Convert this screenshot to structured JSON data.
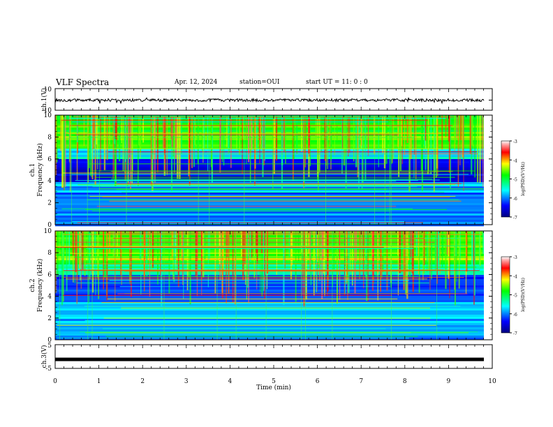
{
  "header": {
    "title": "VLF Spectra",
    "date": "Apr. 12, 2024",
    "station": "station=OUI",
    "start_ut": "start  UT  =   11: 0   : 0"
  },
  "chart_data": [
    {
      "type": "line",
      "ylabel": "ch.1(V)",
      "ylim": [
        -10,
        10
      ],
      "yticks": [
        "10",
        "-10"
      ],
      "xlim": [
        0,
        10
      ],
      "series": [
        {
          "values_note_mean": 0,
          "noise_amplitude": 1.5
        }
      ]
    },
    {
      "type": "heatmap",
      "ylabel_top": "ch.1",
      "ylabel": "Frequency (kHz)",
      "ylim": [
        0,
        10
      ],
      "yticks": [
        "0",
        "2",
        "4",
        "6",
        "8",
        "10"
      ],
      "xlim": [
        0,
        10
      ],
      "colorbar": {
        "label": "log(PSD)(V²/Hz)",
        "range": [
          -7,
          -3
        ],
        "ticks": [
          "-3",
          "-4",
          "-5",
          "-6",
          "-7"
        ]
      },
      "bands": [
        {
          "from_khz": 0,
          "to_khz": 1.5,
          "level": -5.9
        },
        {
          "from_khz": 1.5,
          "to_khz": 3.0,
          "level": -6.1
        },
        {
          "from_khz": 3.0,
          "to_khz": 4.0,
          "level": -5.8
        },
        {
          "from_khz": 4.0,
          "to_khz": 6.0,
          "level": -6.6
        },
        {
          "from_khz": 6.0,
          "to_khz": 7.0,
          "level": -5.6
        },
        {
          "from_khz": 7.0,
          "to_khz": 10.0,
          "level": -4.7
        }
      ]
    },
    {
      "type": "heatmap",
      "ylabel_top": "ch.2",
      "ylabel": "Frequency (kHz)",
      "ylim": [
        0,
        10
      ],
      "yticks": [
        "0",
        "2",
        "4",
        "6",
        "8",
        "10"
      ],
      "xlim": [
        0,
        10
      ],
      "colorbar": {
        "label": "log(PSD)(V²/Hz)",
        "range": [
          -7,
          -3
        ],
        "ticks": [
          "-3",
          "-4",
          "-5",
          "-6",
          "-7"
        ]
      },
      "bands": [
        {
          "from_khz": 0,
          "to_khz": 1.5,
          "level": -6.0
        },
        {
          "from_khz": 1.5,
          "to_khz": 3.5,
          "level": -5.9
        },
        {
          "from_khz": 3.5,
          "to_khz": 6.0,
          "level": -6.2
        },
        {
          "from_khz": 6.0,
          "to_khz": 7.0,
          "level": -5.5
        },
        {
          "from_khz": 7.0,
          "to_khz": 10.0,
          "level": -4.6
        }
      ]
    },
    {
      "type": "line",
      "ylabel": "ch.3(V)",
      "ylim": [
        -5,
        5
      ],
      "yticks": [
        "5",
        "-5"
      ],
      "xlim": [
        0,
        10
      ],
      "series": [
        {
          "constant_value": -1.2
        }
      ]
    }
  ],
  "xaxis": {
    "label": "Time  (min)",
    "ticks": [
      "0",
      "1",
      "2",
      "3",
      "4",
      "5",
      "6",
      "7",
      "8",
      "9",
      "10"
    ]
  }
}
